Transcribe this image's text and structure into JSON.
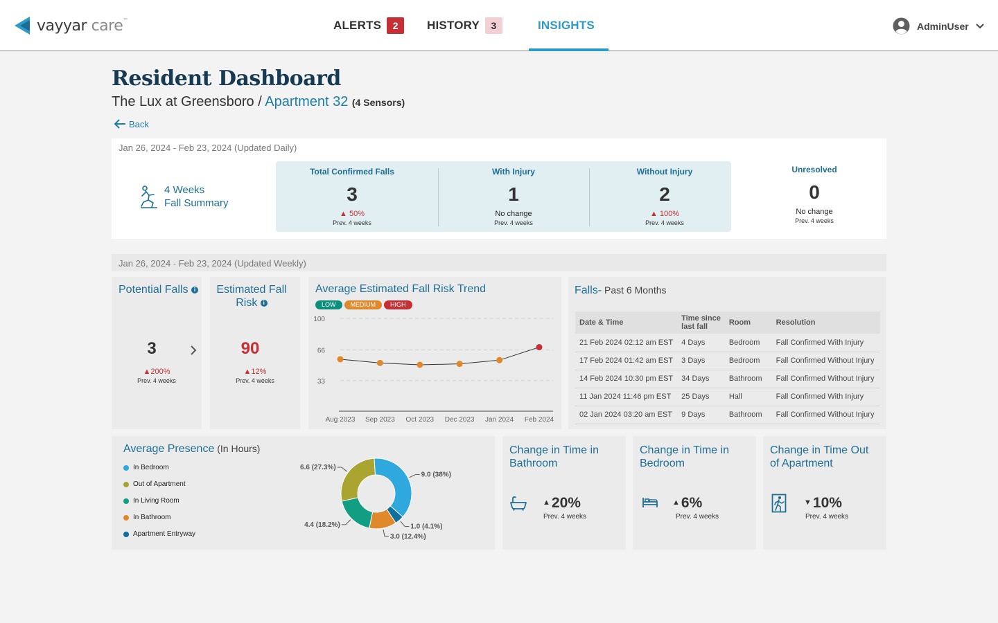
{
  "header": {
    "logo": {
      "brand": "vayyar",
      "product": "care",
      "tm": "™"
    },
    "nav": [
      {
        "label": "ALERTS",
        "badge": "2"
      },
      {
        "label": "HISTORY",
        "badge": "3"
      },
      {
        "label": "INSIGHTS"
      }
    ],
    "user": {
      "name": "AdminUser"
    }
  },
  "page": {
    "title": "Resident Dashboard",
    "facility": "The Lux at Greensboro",
    "separator": " / ",
    "apartment": "Apartment 32",
    "sensors": "(4 Sensors)",
    "back_label": "Back"
  },
  "fall_summary": {
    "date_range": "Jan 26, 2024 - Feb 23, 2024",
    "update_note": "(Updated Daily)",
    "label_line1": "4 Weeks",
    "label_line2": "Fall Summary",
    "kpis": [
      {
        "label": "Total Confirmed Falls",
        "value": "3",
        "change": "50%",
        "prev": "Prev. 4 weeks"
      },
      {
        "label": "With Injury",
        "value": "1",
        "change": "No change",
        "prev": "Prev. 4 weeks"
      },
      {
        "label": "Without Injury",
        "value": "2",
        "change": "100%",
        "prev": "Prev. 4 weeks"
      },
      {
        "label": "Unresolved",
        "value": "0",
        "change": "No change",
        "prev": "Prev. 4 weeks"
      }
    ]
  },
  "weekly": {
    "date_range": "Jan 26, 2024 - Feb 23, 2024",
    "update_note": "(Updated Weekly)",
    "potential_falls": {
      "title": "Potential Falls",
      "value": "3",
      "change": "200%",
      "prev": "Prev. 4 weeks"
    },
    "fall_risk": {
      "title_line1": "Estimated Fall",
      "title_line2": "Risk",
      "value": "90",
      "change": "12%",
      "prev": "Prev. 4 weeks"
    },
    "risk_trend": {
      "title": "Average Estimated Fall Risk Trend",
      "levels": [
        {
          "label": "LOW",
          "color": "#0e8f7e"
        },
        {
          "label": "MEDIUM",
          "color": "#e0892b"
        },
        {
          "label": "HIGH",
          "color": "#c62f34"
        }
      ]
    },
    "falls_table": {
      "title": "Falls-",
      "subtitle": " Past 6 Months",
      "columns": [
        "Date & Time",
        "Time since last fall",
        "Room",
        "Resolution"
      ],
      "rows": [
        [
          "21 Feb 2024 02:12 am EST",
          "4 Days",
          "Bedroom",
          "Fall Confirmed With Injury"
        ],
        [
          "17 Feb 2024 01:42 am EST",
          "3 Days",
          "Bedroom",
          "Fall Confirmed Without Injury"
        ],
        [
          "14 Feb 2024 10:30 pm EST",
          "34 Days",
          "Bathroom",
          "Fall Confirmed Without Injury"
        ],
        [
          "11 Jan 2024 11:46 pm EST",
          "25 Days",
          "Hall",
          "Fall Confirmed With Injury"
        ],
        [
          "02 Jan 2024 03:20 am EST",
          "9 Days",
          "Bathroom",
          "Fall Confirmed Without Injury"
        ]
      ]
    }
  },
  "presence": {
    "title": "Average Presence",
    "unit": " (In Hours)"
  },
  "changes": [
    {
      "title_line1": "Change in Time in",
      "title_line2": "Bathroom",
      "direction": "up",
      "value": "20%",
      "prev": "Prev. 4 weeks",
      "icon": "bathtub-icon"
    },
    {
      "title_line1": "Change in Time in",
      "title_line2": "Bedroom",
      "direction": "up",
      "value": "6%",
      "prev": "Prev. 4 weeks",
      "icon": "bed-icon"
    },
    {
      "title_line1": "Change in Time Out",
      "title_line2": "of Apartment",
      "direction": "down",
      "value": "10%",
      "prev": "Prev. 4 weeks",
      "icon": "exit-icon"
    }
  ],
  "colors": {
    "accent": "#1e6f96",
    "alert": "#c62f34",
    "tab_active": "#2e9ac7"
  },
  "chart_data": [
    {
      "type": "line",
      "title": "Average Estimated Fall Risk Trend",
      "x": [
        "Aug 2023",
        "Sep 2023",
        "Oct 2023",
        "Dec 2023",
        "Jan 2024",
        "Feb 2024"
      ],
      "series": [
        {
          "values": [
            56,
            52,
            50,
            51,
            55,
            69
          ]
        }
      ],
      "point_levels": [
        "medium",
        "medium",
        "medium",
        "medium",
        "medium",
        "high"
      ],
      "yticks": [
        33,
        66,
        100
      ],
      "ylim": [
        0,
        100
      ],
      "grid": true
    },
    {
      "type": "pie",
      "title": "Average Presence (In Hours)",
      "donut": true,
      "legend_position": "left",
      "slices": [
        {
          "name": "In Bedroom",
          "value": 9.0,
          "label": "9.0 (38%)",
          "color": "#2fa8de"
        },
        {
          "name": "Apartment Entryway",
          "value": 1.0,
          "label": "1.0 (4.1%)",
          "color": "#0f6f9e"
        },
        {
          "name": "In Bathroom",
          "value": 3.0,
          "label": "3.0 (12.4%)",
          "color": "#e0892b"
        },
        {
          "name": "In Living Room",
          "value": 4.4,
          "label": "4.4 (18.2%)",
          "color": "#119e82"
        },
        {
          "name": "Out of Apartment",
          "value": 6.6,
          "label": "6.6 (27.3%)",
          "color": "#a9a530"
        }
      ]
    }
  ]
}
